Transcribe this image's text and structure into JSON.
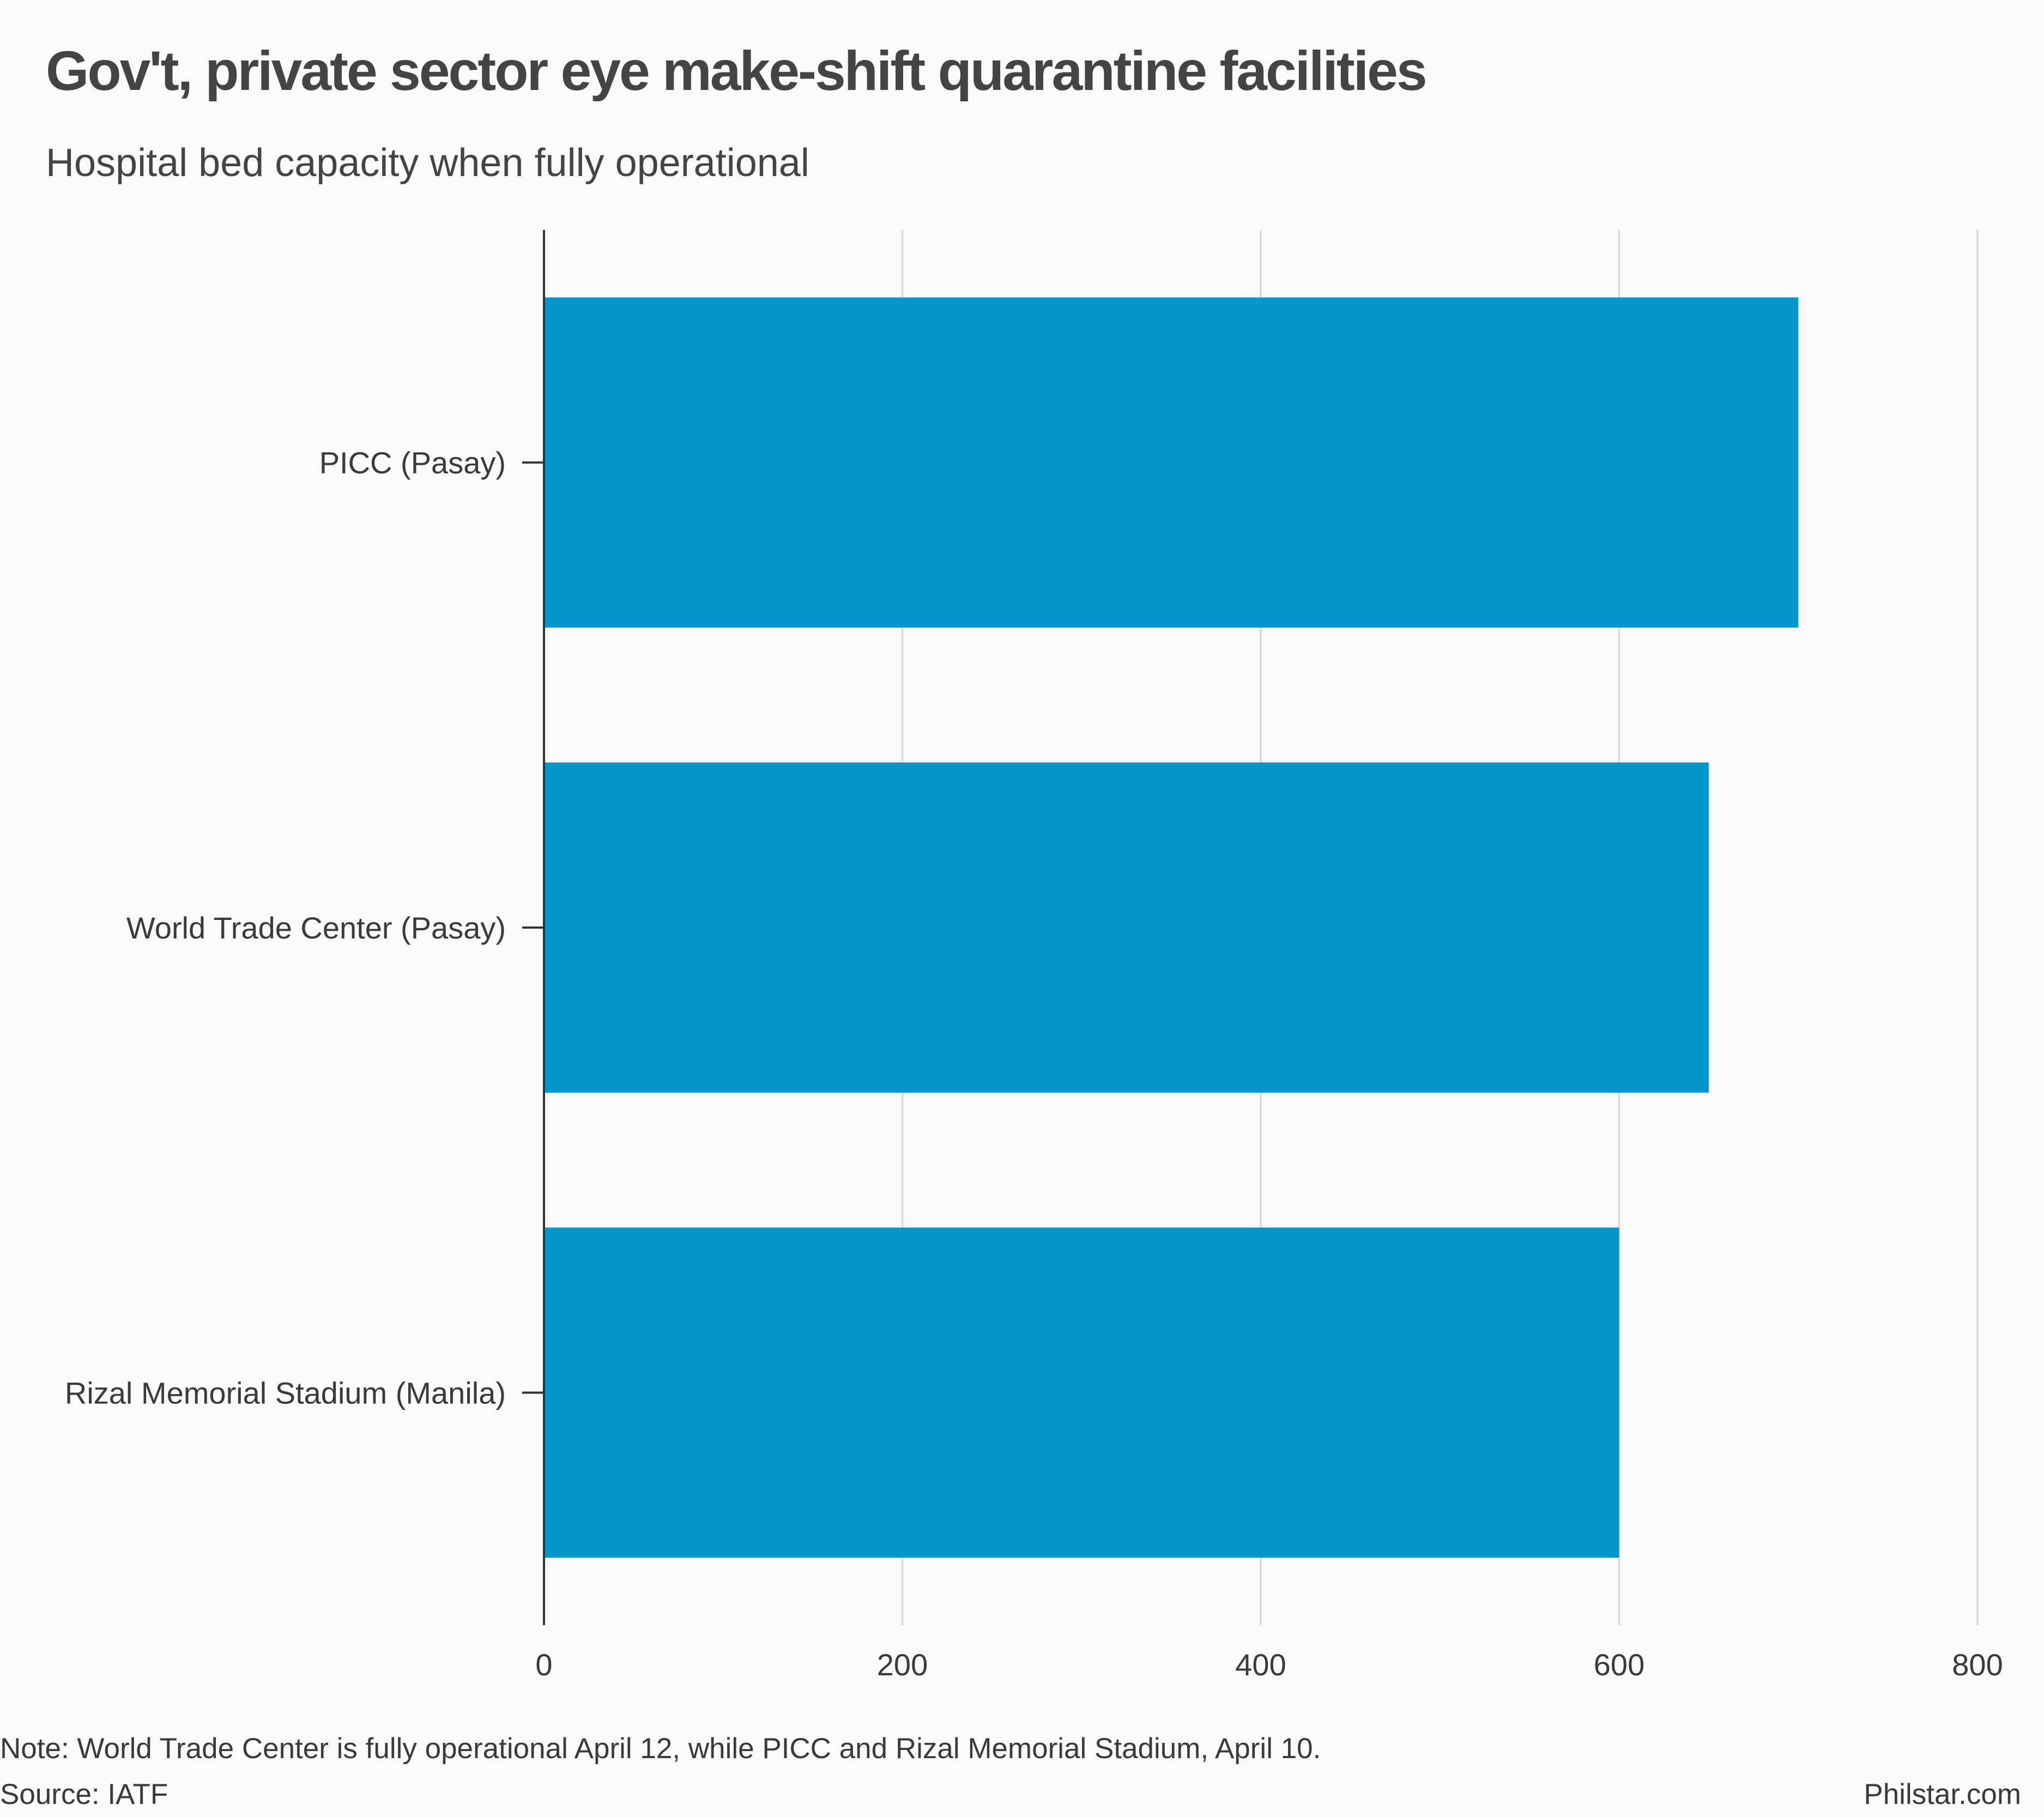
{
  "header": {
    "title": "Gov't, private sector eye make-shift quarantine facilities",
    "subtitle": "Hospital bed capacity when fully operational"
  },
  "footer": {
    "note": "Note: World Trade Center is fully operational April 12, while PICC and Rizal Memorial Stadium, April 10.",
    "source": "Source: IATF",
    "credit": "Philstar.com"
  },
  "colors": {
    "bar": "#0596cc",
    "grid": "#dddddd",
    "axis": "#333333",
    "text": "#3a3a3a"
  },
  "chart_data": {
    "type": "bar",
    "orientation": "horizontal",
    "categories": [
      "PICC (Pasay)",
      "World Trade Center (Pasay)",
      "Rizal Memorial Stadium (Manila)"
    ],
    "values": [
      700,
      650,
      600
    ],
    "title": "Gov't, private sector eye make-shift quarantine facilities",
    "subtitle": "Hospital bed capacity when fully operational",
    "xlabel": "",
    "ylabel": "",
    "xlim": [
      0,
      800
    ],
    "xticks": [
      0,
      200,
      400,
      600,
      800
    ],
    "grid": true,
    "legend": "none"
  }
}
